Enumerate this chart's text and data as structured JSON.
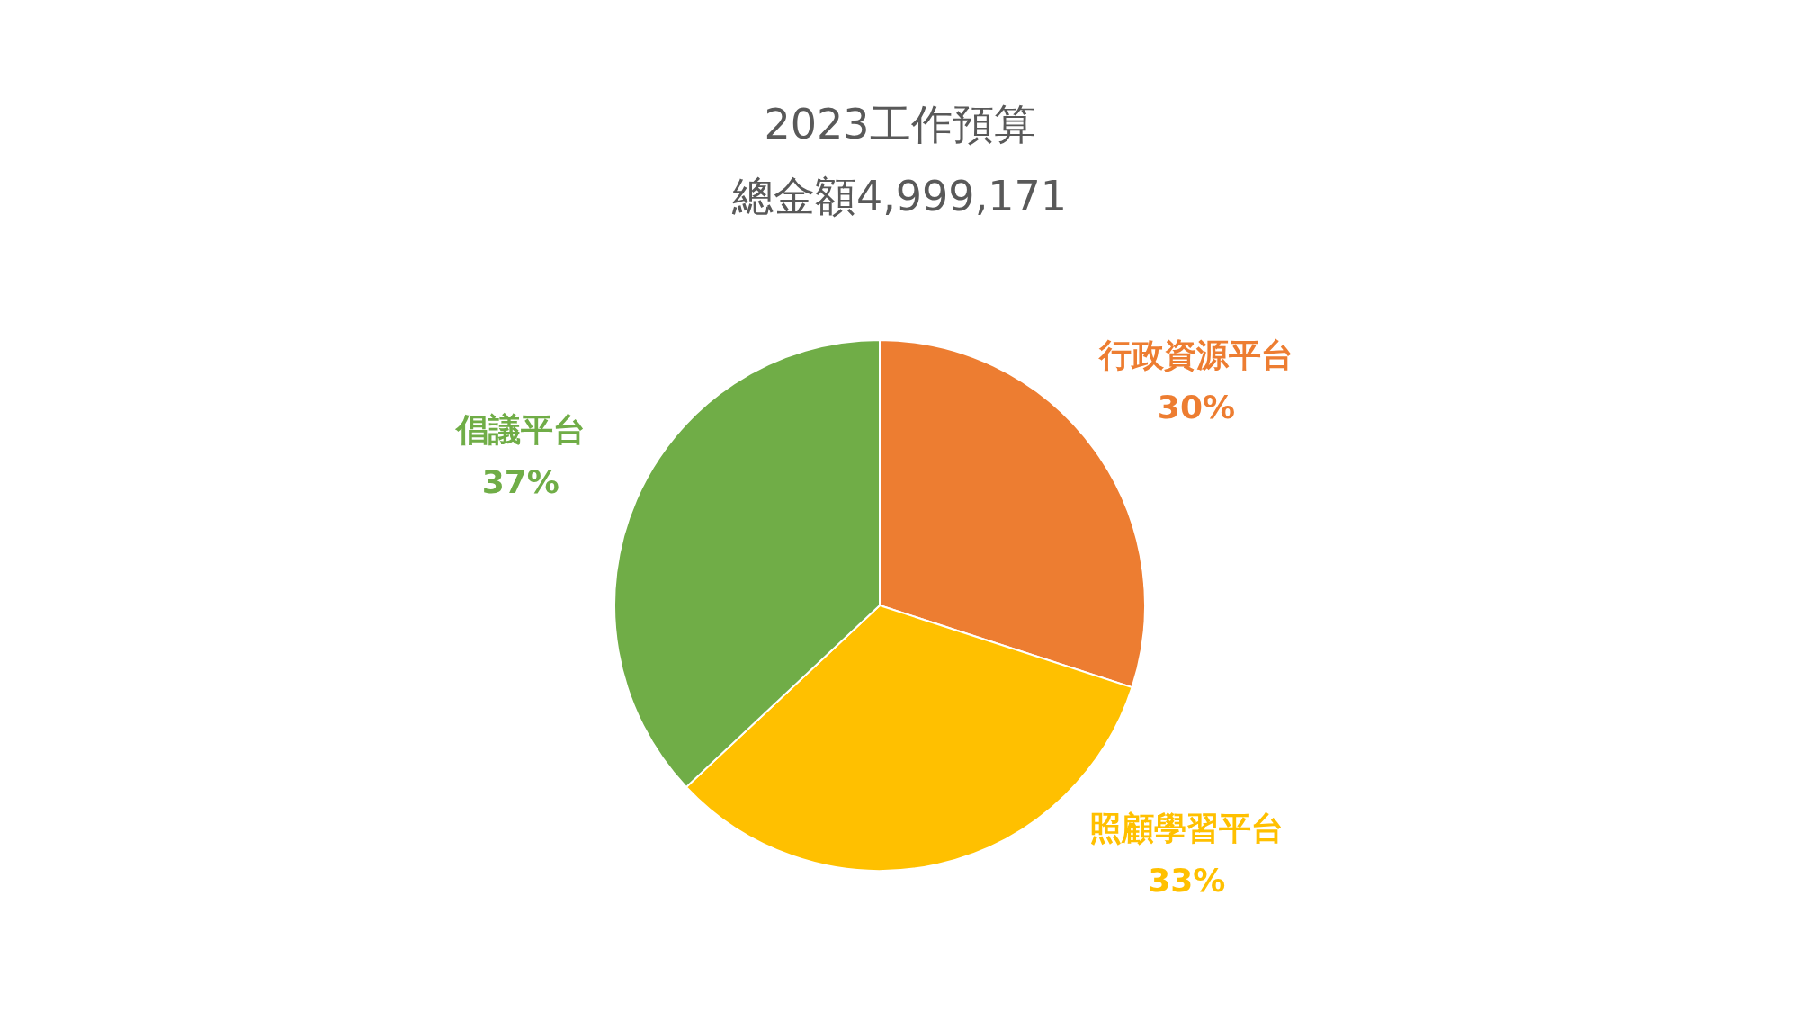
{
  "chart_data": {
    "type": "pie",
    "title": "2023工作預算",
    "subtitle": "總金額4,999,171",
    "categories": [
      "行政資源平台",
      "照顧學習平台",
      "倡議平台"
    ],
    "values": [
      30,
      33,
      37
    ],
    "colors": [
      "#ed7d31",
      "#ffc000",
      "#70ad47"
    ],
    "value_labels": [
      "30%",
      "33%",
      "37%"
    ]
  }
}
